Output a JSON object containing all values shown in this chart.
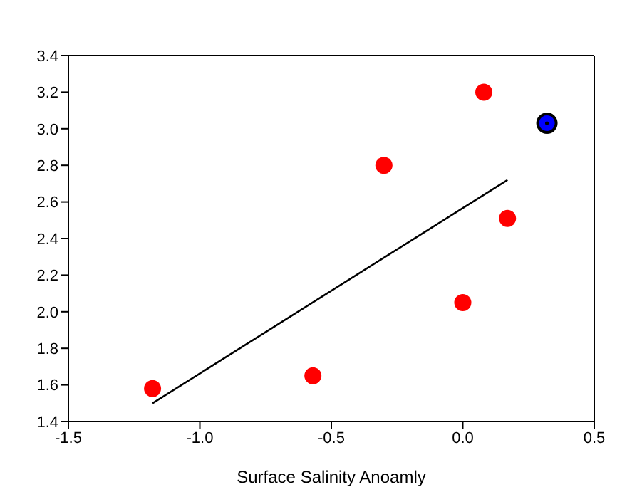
{
  "chart_data": {
    "type": "scatter",
    "xlabel": "Surface Salinity Anoamly",
    "xlim": [
      -1.5,
      0.5
    ],
    "xticks": [
      -1.5,
      {
        "value": -1,
        "label": "-1.0"
      },
      -0.5,
      {
        "value": 0,
        "label": "0.0"
      },
      0.5
    ],
    "ylim": [
      1.4,
      3.4
    ],
    "yticks": [
      1.4,
      1.6,
      1.8,
      {
        "value": 2,
        "label": "2.0"
      },
      2.2,
      2.4,
      2.6,
      2.8,
      {
        "value": 3,
        "label": "3.0"
      },
      3.2,
      3.4
    ],
    "grid": false,
    "legend": false,
    "marker": "circle",
    "series": [
      {
        "color": "#ff0000",
        "x": [
          -1.18,
          -0.57,
          -0.3,
          0.0,
          0.08,
          0.17
        ],
        "values": [
          1.58,
          1.65,
          2.8,
          2.05,
          3.2,
          2.51
        ]
      },
      {
        "color": "#0000ff",
        "x": [
          0.32
        ],
        "values": [
          3.03
        ]
      },
      {
        "type": "line",
        "color": "#000000",
        "x": [
          -1.18,
          0.17
        ],
        "values": [
          1.5,
          2.72
        ],
        "marker": "none",
        "line_style": "solid"
      }
    ]
  }
}
